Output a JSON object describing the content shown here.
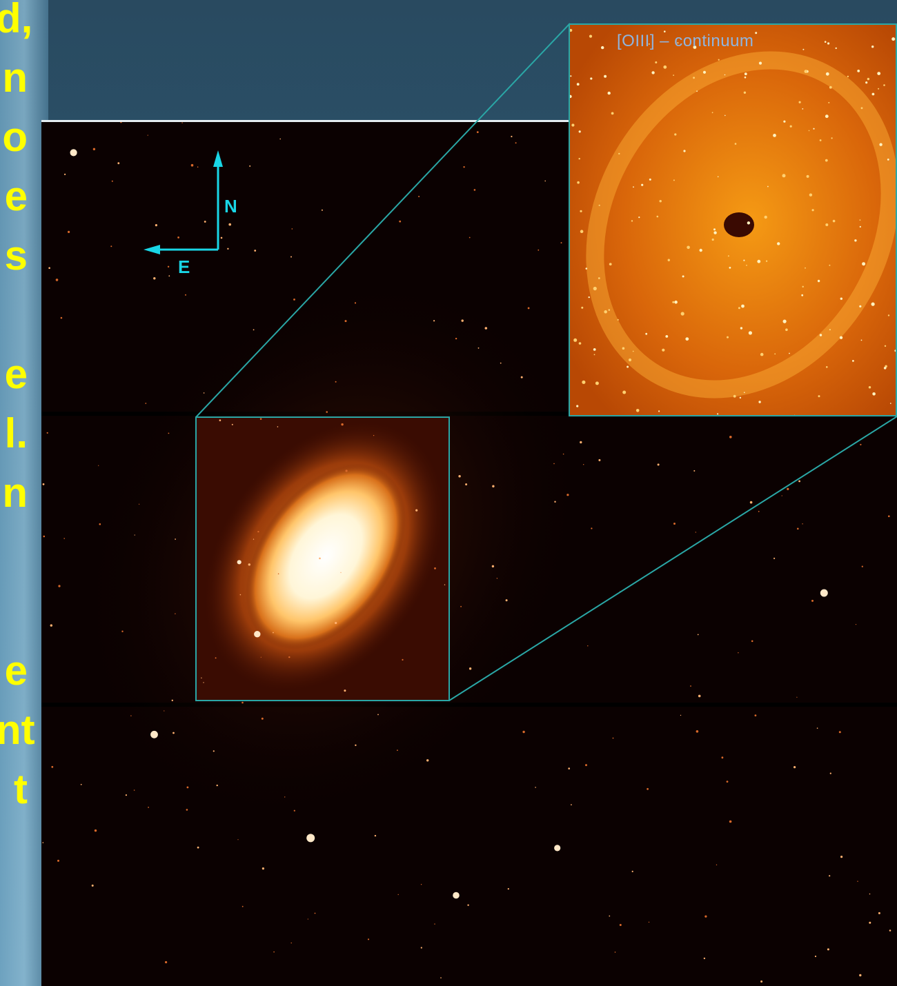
{
  "slide": {
    "text_fragments": [
      "d,",
      "n",
      "o",
      "e",
      "s",
      "",
      "e",
      "l.",
      "n",
      "",
      "",
      "e",
      "nt",
      "t"
    ]
  },
  "image": {
    "subject": "barred spiral galaxy",
    "inset_label": "[OIII] – continuum",
    "compass": {
      "north": "N",
      "east": "E"
    }
  },
  "colors": {
    "slide_text": "#ffff00",
    "zoom_lines": "#2aa7a6",
    "compass": "#19d6e6",
    "inset_label": "#8fb5e0"
  }
}
